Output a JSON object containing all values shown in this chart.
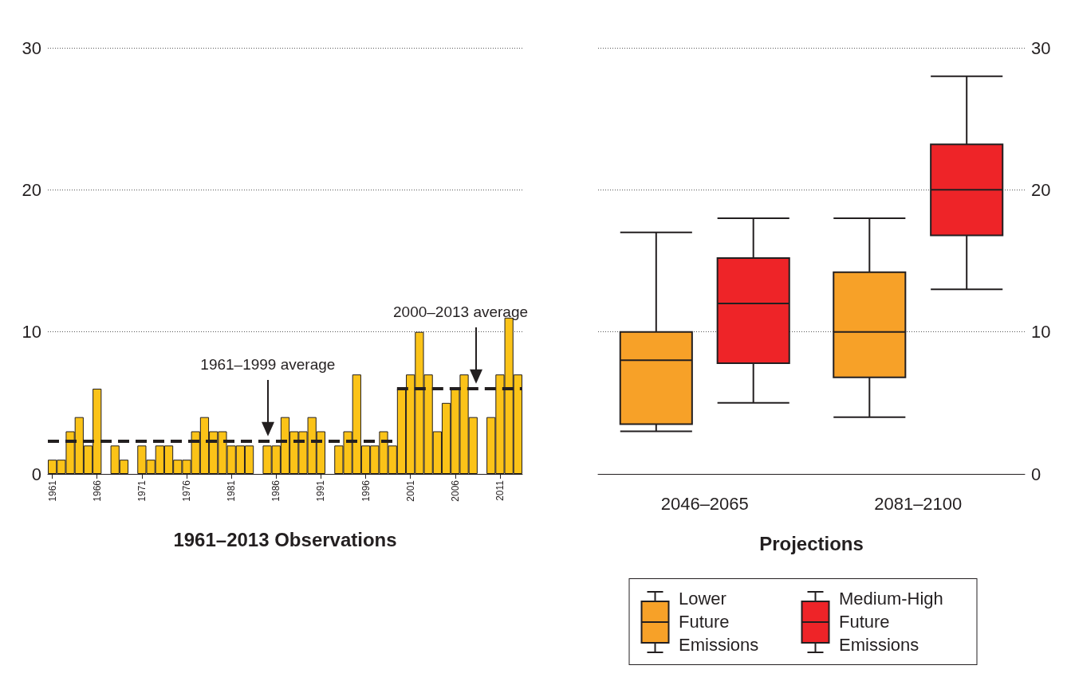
{
  "chart_data": [
    {
      "type": "bar",
      "xlabel": "1961–2013 Observations",
      "x": [
        1961,
        1962,
        1963,
        1964,
        1965,
        1966,
        1967,
        1968,
        1969,
        1970,
        1971,
        1972,
        1973,
        1974,
        1975,
        1976,
        1977,
        1978,
        1979,
        1980,
        1981,
        1982,
        1983,
        1984,
        1985,
        1986,
        1987,
        1988,
        1989,
        1990,
        1991,
        1992,
        1993,
        1994,
        1995,
        1996,
        1997,
        1998,
        1999,
        2000,
        2001,
        2002,
        2003,
        2004,
        2005,
        2006,
        2007,
        2008,
        2009,
        2010,
        2011,
        2012,
        2013
      ],
      "series": [
        {
          "type": "bar",
          "color": "#fbc318",
          "values": [
            1,
            1,
            3,
            4,
            2,
            6,
            0,
            2,
            1,
            0,
            2,
            1,
            2,
            2,
            1,
            1,
            3,
            4,
            3,
            3,
            2,
            2,
            2,
            0,
            2,
            2,
            4,
            3,
            3,
            4,
            3,
            0,
            2,
            3,
            7,
            2,
            2,
            3,
            2,
            6,
            7,
            10,
            7,
            3,
            5,
            6,
            7,
            4,
            0,
            4,
            7,
            11,
            7
          ]
        },
        {
          "type": "line",
          "x": [
            1960.5,
            1999.5
          ],
          "values": [
            2.3,
            2.3
          ],
          "color": "#231f20",
          "line_style": "dashed",
          "marker": "none"
        },
        {
          "type": "line",
          "x": [
            1999.5,
            2013.5
          ],
          "values": [
            6,
            6
          ],
          "color": "#231f20",
          "line_style": "dashed",
          "marker": "none"
        }
      ],
      "xlim": [
        1960.5,
        2013.5
      ],
      "xticks": [
        1961,
        1966,
        1971,
        1976,
        1981,
        1986,
        1991,
        1996,
        2001,
        2006,
        2011
      ],
      "ylim": [
        0,
        30
      ],
      "yticks": [
        0,
        10,
        20,
        30
      ],
      "grid": "y",
      "annotations": [
        "1961–1999 average",
        "2000–2013 average"
      ]
    },
    {
      "type": "box",
      "xlabel": "Projections",
      "categories": [
        "2046–2065",
        "2081–2100"
      ],
      "series": [
        {
          "name": "Lower Future Emissions",
          "color": "#f7a128",
          "boxes": [
            {
              "low": 3,
              "q1": 3.5,
              "median": 8,
              "q3": 10,
              "high": 17
            },
            {
              "low": 4,
              "q1": 6.8,
              "median": 10,
              "q3": 14.2,
              "high": 18
            }
          ]
        },
        {
          "name": "Medium-High Future Emissions",
          "color": "#ee2428",
          "boxes": [
            {
              "low": 5,
              "q1": 7.8,
              "median": 12,
              "q3": 15.2,
              "high": 18
            },
            {
              "low": 13,
              "q1": 16.8,
              "median": 20,
              "q3": 23.2,
              "high": 28
            }
          ]
        }
      ],
      "ylim": [
        0,
        30
      ],
      "yticks": [
        0,
        10,
        20,
        30
      ],
      "grid": "y",
      "legend": "bottom",
      "line_style": "solid"
    }
  ]
}
